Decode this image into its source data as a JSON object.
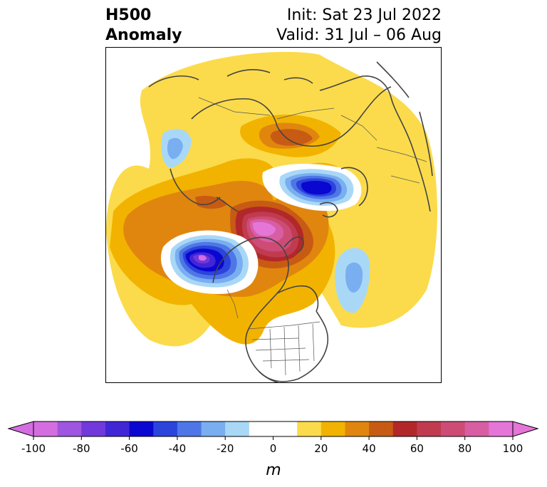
{
  "title": {
    "left_line1": "H500",
    "left_line2": "Anomaly",
    "right_line1": "Init: Sat 23 Jul 2022",
    "right_line2": "Valid: 31 Jul – 06 Aug"
  },
  "colorbar": {
    "unit": "m",
    "min": -100,
    "max": 100,
    "ticks": [
      -100,
      -80,
      -60,
      -40,
      -20,
      0,
      20,
      40,
      60,
      80,
      100
    ],
    "tick_labels": [
      "-100",
      "-80",
      "-60",
      "-40",
      "-20",
      "0",
      "20",
      "40",
      "60",
      "80",
      "100"
    ],
    "colors": [
      "#d46ee0",
      "#9f55df",
      "#7138db",
      "#4126d6",
      "#0a07d1",
      "#2b44dc",
      "#4f76e6",
      "#79aef0",
      "#a9d8f7",
      "#ffffff",
      "#ffffff",
      "#fbdb4b",
      "#f2b300",
      "#e0860f",
      "#c75b14",
      "#b2282a",
      "#c13b50",
      "#cd4c76",
      "#d85ea4",
      "#e476d8"
    ]
  },
  "map": {
    "projection": "north-polar-stereographic",
    "anomaly_features": [
      {
        "name": "negative-anomaly-northeast-pacific-alaska",
        "sign": "negative",
        "approx_min_m": -90
      },
      {
        "name": "negative-anomaly-barents-kara-sea",
        "sign": "negative",
        "approx_min_m": -60
      },
      {
        "name": "negative-anomaly-central-eurasia",
        "sign": "negative",
        "approx_min_m": -30
      },
      {
        "name": "negative-anomaly-north-pacific-east-asia",
        "sign": "negative",
        "approx_min_m": -30
      },
      {
        "name": "positive-anomaly-arctic-greenland",
        "sign": "positive",
        "approx_max_m": 90
      },
      {
        "name": "positive-anomaly-eastern-siberia",
        "sign": "positive",
        "approx_max_m": 50
      }
    ]
  }
}
